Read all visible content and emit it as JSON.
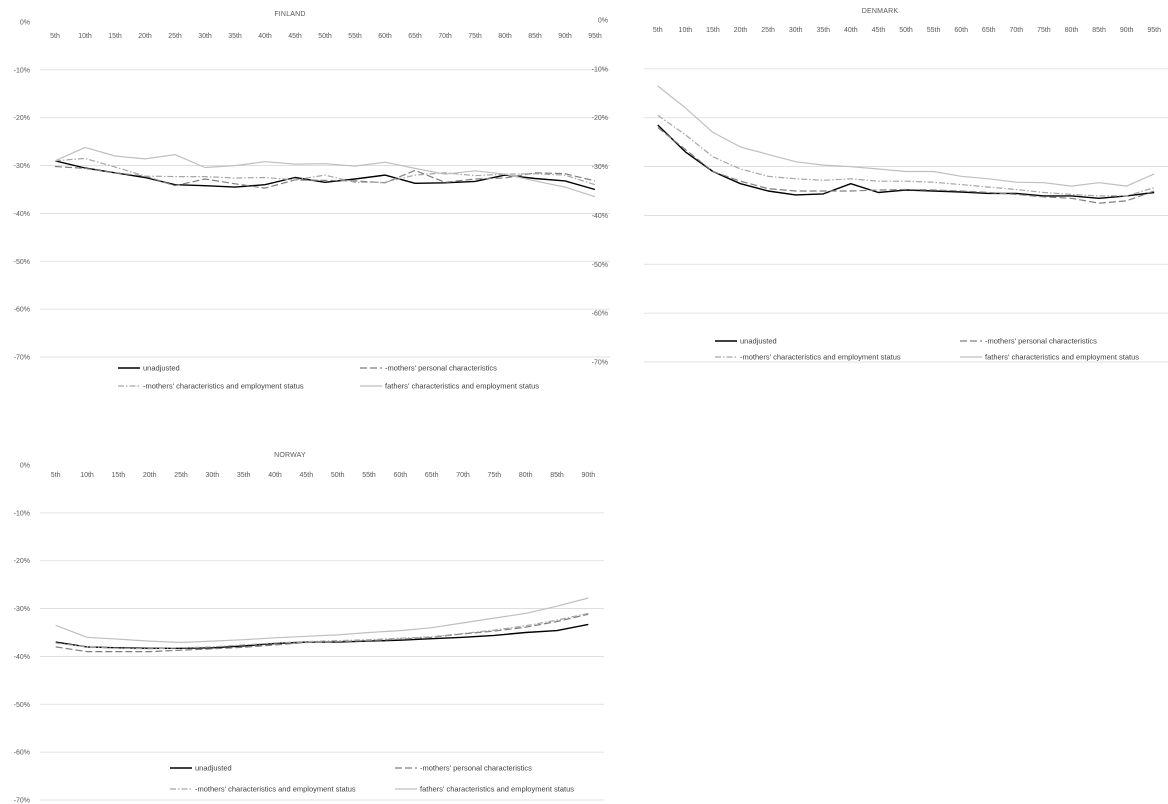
{
  "chart_data": [
    {
      "type": "line",
      "title": "FINLAND",
      "categories": [
        "5th",
        "10th",
        "15th",
        "20th",
        "25th",
        "30th",
        "35th",
        "40th",
        "45th",
        "50th",
        "55th",
        "60th",
        "65th",
        "70th",
        "75th",
        "80th",
        "85th",
        "90th",
        "95th"
      ],
      "y_ticks": [
        "0%",
        "-10%",
        "-20%",
        "-30%",
        "-40%",
        "-50%",
        "-60%",
        "-70%"
      ],
      "ylim": [
        -70,
        0
      ],
      "legend_position": "bottom",
      "series": [
        {
          "name": "unadjusted",
          "style": "solid-black",
          "values": [
            -29,
            -30.5,
            -31.5,
            -32.5,
            -34,
            -34.2,
            -34.5,
            -34,
            -32.5,
            -33.5,
            -32.8,
            -32,
            -33.7,
            -33.6,
            -33.3,
            -32,
            -32.7,
            -33.2,
            -35
          ]
        },
        {
          "name": "-mothers' personal characteristics",
          "style": "long-dash",
          "values": [
            -30.2,
            -30.6,
            -31.5,
            -32.2,
            -34.2,
            -32.8,
            -33.8,
            -34.7,
            -33,
            -33.1,
            -33.2,
            -33.6,
            -31,
            -33.5,
            -32.8,
            -32.6,
            -31.5,
            -31.7,
            -33.2
          ]
        },
        {
          "name": "-mothers' characteristics and employment status",
          "style": "dash-dot",
          "values": [
            -29,
            -28.5,
            -30.3,
            -32.2,
            -32.3,
            -32.3,
            -32.6,
            -32.5,
            -33,
            -32,
            -33.5,
            -33.5,
            -32,
            -31.5,
            -32.1,
            -31.8,
            -31.7,
            -32,
            -34
          ]
        },
        {
          "name": "fathers' characteristics and employment status",
          "style": "light-solid",
          "values": [
            -29,
            -26.2,
            -28,
            -28.6,
            -27.7,
            -30.4,
            -30,
            -29.2,
            -29.7,
            -29.6,
            -30.1,
            -29.3,
            -30.6,
            -31.8,
            -31.1,
            -31.8,
            -33.2,
            -34.5,
            -36.5
          ]
        }
      ]
    },
    {
      "type": "line",
      "title": "DENMARK",
      "categories": [
        "5th",
        "10th",
        "15th",
        "20th",
        "25th",
        "30th",
        "35th",
        "40th",
        "45th",
        "50th",
        "55th",
        "60th",
        "65th",
        "70th",
        "75th",
        "80th",
        "85th",
        "90th",
        "95th"
      ],
      "y_ticks": [
        "0%",
        "-10%",
        "-20%",
        "-30%",
        "-40%",
        "-50%",
        "-60%",
        "-70%"
      ],
      "ylim": [
        -70,
        0
      ],
      "legend_position": "bottom",
      "series": [
        {
          "name": "unadjusted",
          "style": "solid-black",
          "values": [
            -21.5,
            -27,
            -31,
            -33.5,
            -35,
            -35.8,
            -35.6,
            -33.5,
            -35.3,
            -34.8,
            -35,
            -35.2,
            -35.5,
            -35.5,
            -36,
            -36,
            -36.5,
            -36,
            -35.3
          ]
        },
        {
          "name": "-mothers' personal characteristics",
          "style": "long-dash",
          "values": [
            -22,
            -26.5,
            -31,
            -33,
            -34.5,
            -35,
            -35,
            -35,
            -34.8,
            -34.7,
            -34.8,
            -35,
            -35.3,
            -35.7,
            -36.2,
            -36.5,
            -37.5,
            -37,
            -35
          ]
        },
        {
          "name": "-mothers' characteristics and employment status",
          "style": "dash-dot",
          "values": [
            -19.5,
            -23.5,
            -28,
            -30.5,
            -32,
            -32.5,
            -32.8,
            -32.5,
            -33,
            -33,
            -33.2,
            -33.7,
            -34.2,
            -34.7,
            -35.3,
            -35.7,
            -36,
            -36,
            -34.3
          ]
        },
        {
          "name": "fathers' characteristics and employment status",
          "style": "light-solid",
          "values": [
            -13.5,
            -18,
            -23,
            -26,
            -27.5,
            -29,
            -29.7,
            -30,
            -30.5,
            -31,
            -31,
            -32,
            -32.5,
            -33.2,
            -33.3,
            -34,
            -33.3,
            -34,
            -31.5
          ]
        }
      ]
    },
    {
      "type": "line",
      "title": "NORWAY",
      "categories": [
        "5th",
        "10th",
        "15th",
        "20th",
        "25th",
        "30th",
        "35th",
        "40th",
        "45th",
        "50th",
        "55th",
        "60th",
        "65th",
        "70th",
        "75th",
        "80th",
        "85th",
        "90th"
      ],
      "y_ticks": [
        "0%",
        "-10%",
        "-20%",
        "-30%",
        "-40%",
        "-50%",
        "-60%",
        "-70%"
      ],
      "ylim": [
        -70,
        0
      ],
      "legend_position": "bottom",
      "series": [
        {
          "name": "unadjusted",
          "style": "solid-black",
          "values": [
            -37,
            -38,
            -38.2,
            -38.3,
            -38.3,
            -38.2,
            -37.8,
            -37.3,
            -37,
            -37,
            -36.8,
            -36.6,
            -36.3,
            -36,
            -35.6,
            -35,
            -34.6,
            -33.3
          ]
        },
        {
          "name": "-mothers' personal characteristics",
          "style": "long-dash",
          "values": [
            -38,
            -39,
            -39,
            -39,
            -38.7,
            -38.4,
            -38.1,
            -37.6,
            -37.1,
            -36.9,
            -36.7,
            -36.4,
            -36,
            -35.3,
            -34.7,
            -33.9,
            -32.7,
            -31.2
          ]
        },
        {
          "name": "-mothers' characteristics and employment status",
          "style": "dash-dot",
          "values": [
            -37.2,
            -38,
            -38.3,
            -38.4,
            -38.2,
            -38,
            -37.6,
            -37.2,
            -36.9,
            -36.7,
            -36.5,
            -36.2,
            -35.9,
            -35.2,
            -34.5,
            -33.6,
            -32.4,
            -31
          ]
        },
        {
          "name": "fathers' characteristics and employment status",
          "style": "light-solid",
          "values": [
            -33.5,
            -36,
            -36.4,
            -36.8,
            -37.1,
            -36.8,
            -36.5,
            -36.1,
            -35.8,
            -35.5,
            -35,
            -34.6,
            -34,
            -33,
            -32,
            -31,
            -29.5,
            -27.8
          ]
        }
      ]
    }
  ]
}
